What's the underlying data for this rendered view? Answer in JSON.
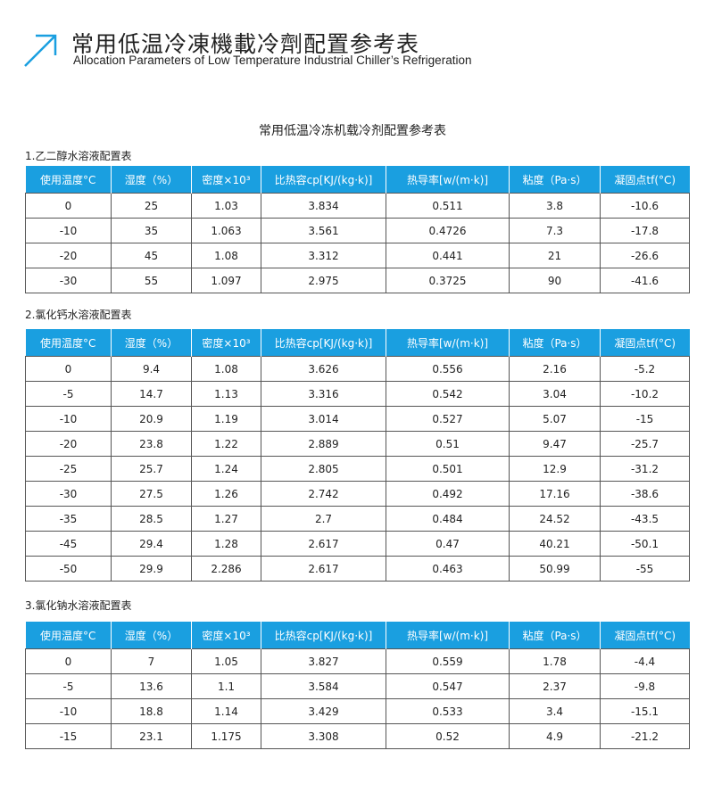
{
  "header": {
    "title_zh": "常用低温冷凍機載冷劑配置参考表",
    "title_en": "Allocation Parameters of Low Temperature Industrial Chiller’s Refrigeration",
    "icon": "arrow-up-right-icon",
    "accent": "#1a9fe0"
  },
  "center_title": "常用低温冷冻机载冷剂配置参考表",
  "columns": [
    "使用温度°C",
    "湿度（%）",
    "密度×10³",
    "比热容cp[KJ/(kg·k)]",
    "热导率[w/(m·k)]",
    "粘度（Pa·s）",
    "凝固点tf(°C)"
  ],
  "tables": [
    {
      "label": "1.乙二醇水溶液配置表",
      "rows": [
        [
          "0",
          "25",
          "1.03",
          "3.834",
          "0.511",
          "3.8",
          "-10.6"
        ],
        [
          "-10",
          "35",
          "1.063",
          "3.561",
          "0.4726",
          "7.3",
          "-17.8"
        ],
        [
          "-20",
          "45",
          "1.08",
          "3.312",
          "0.441",
          "21",
          "-26.6"
        ],
        [
          "-30",
          "55",
          "1.097",
          "2.975",
          "0.3725",
          "90",
          "-41.6"
        ]
      ]
    },
    {
      "label": "2.氯化钙水溶液配置表",
      "rows": [
        [
          "0",
          "9.4",
          "1.08",
          "3.626",
          "0.556",
          "2.16",
          "-5.2"
        ],
        [
          "-5",
          "14.7",
          "1.13",
          "3.316",
          "0.542",
          "3.04",
          "-10.2"
        ],
        [
          "-10",
          "20.9",
          "1.19",
          "3.014",
          "0.527",
          "5.07",
          "-15"
        ],
        [
          "-20",
          "23.8",
          "1.22",
          "2.889",
          "0.51",
          "9.47",
          "-25.7"
        ],
        [
          "-25",
          "25.7",
          "1.24",
          "2.805",
          "0.501",
          "12.9",
          "-31.2"
        ],
        [
          "-30",
          "27.5",
          "1.26",
          "2.742",
          "0.492",
          "17.16",
          "-38.6"
        ],
        [
          "-35",
          "28.5",
          "1.27",
          "2.7",
          "0.484",
          "24.52",
          "-43.5"
        ],
        [
          "-45",
          "29.4",
          "1.28",
          "2.617",
          "0.47",
          "40.21",
          "-50.1"
        ],
        [
          "-50",
          "29.9",
          "2.286",
          "2.617",
          "0.463",
          "50.99",
          "-55"
        ]
      ]
    },
    {
      "label": "3.氯化钠水溶液配置表",
      "rows": [
        [
          "0",
          "7",
          "1.05",
          "3.827",
          "0.559",
          "1.78",
          "-4.4"
        ],
        [
          "-5",
          "13.6",
          "1.1",
          "3.584",
          "0.547",
          "2.37",
          "-9.8"
        ],
        [
          "-10",
          "18.8",
          "1.14",
          "3.429",
          "0.533",
          "3.4",
          "-15.1"
        ],
        [
          "-15",
          "23.1",
          "1.175",
          "3.308",
          "0.52",
          "4.9",
          "-21.2"
        ]
      ]
    }
  ]
}
